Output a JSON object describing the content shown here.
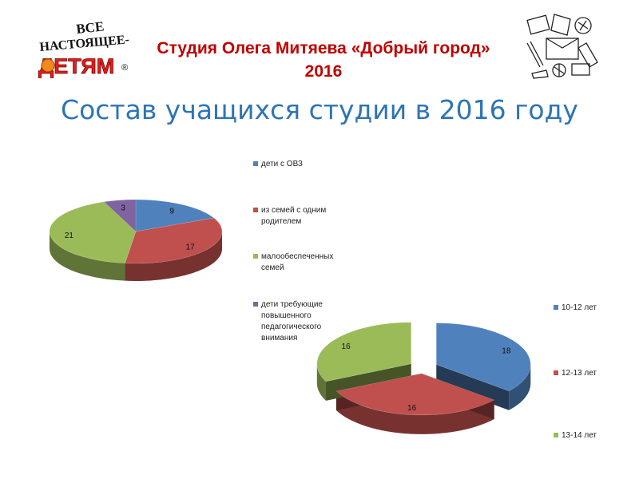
{
  "header": {
    "title_line1": "Студия Олега Митяева «Добрый город»",
    "title_line2": "2016"
  },
  "logo": {
    "line1": "ВСЕ",
    "line2": "НАСТОЯЩЕЕ-",
    "line3": "ДЕТЯМ",
    "mark": "®"
  },
  "slide_title": "Состав учащихся студии в 2016 году",
  "colors": {
    "blue": "#4f81bd",
    "red": "#c0504d",
    "green": "#9bbb59",
    "purple": "#8064a2",
    "title_red": "#c00000",
    "title_blue": "#2e74b5"
  },
  "chart_data": [
    {
      "type": "pie",
      "style": "3d",
      "title": "",
      "categories": [
        "дети с ОВЗ",
        "из семей с одним родителем",
        "малообеспеченных семей",
        "дети требующие повышенного педагогического внимания"
      ],
      "values": [
        9,
        17,
        21,
        3
      ],
      "colors": [
        "#4f81bd",
        "#c0504d",
        "#9bbb59",
        "#8064a2"
      ],
      "legend_position": "right"
    },
    {
      "type": "pie",
      "style": "3d-exploded",
      "title": "",
      "categories": [
        "10-12 лет",
        "12-13 лет",
        "13-14 лет"
      ],
      "values": [
        18,
        16,
        16
      ],
      "colors": [
        "#4f81bd",
        "#c0504d",
        "#9bbb59"
      ],
      "legend_position": "right"
    }
  ]
}
